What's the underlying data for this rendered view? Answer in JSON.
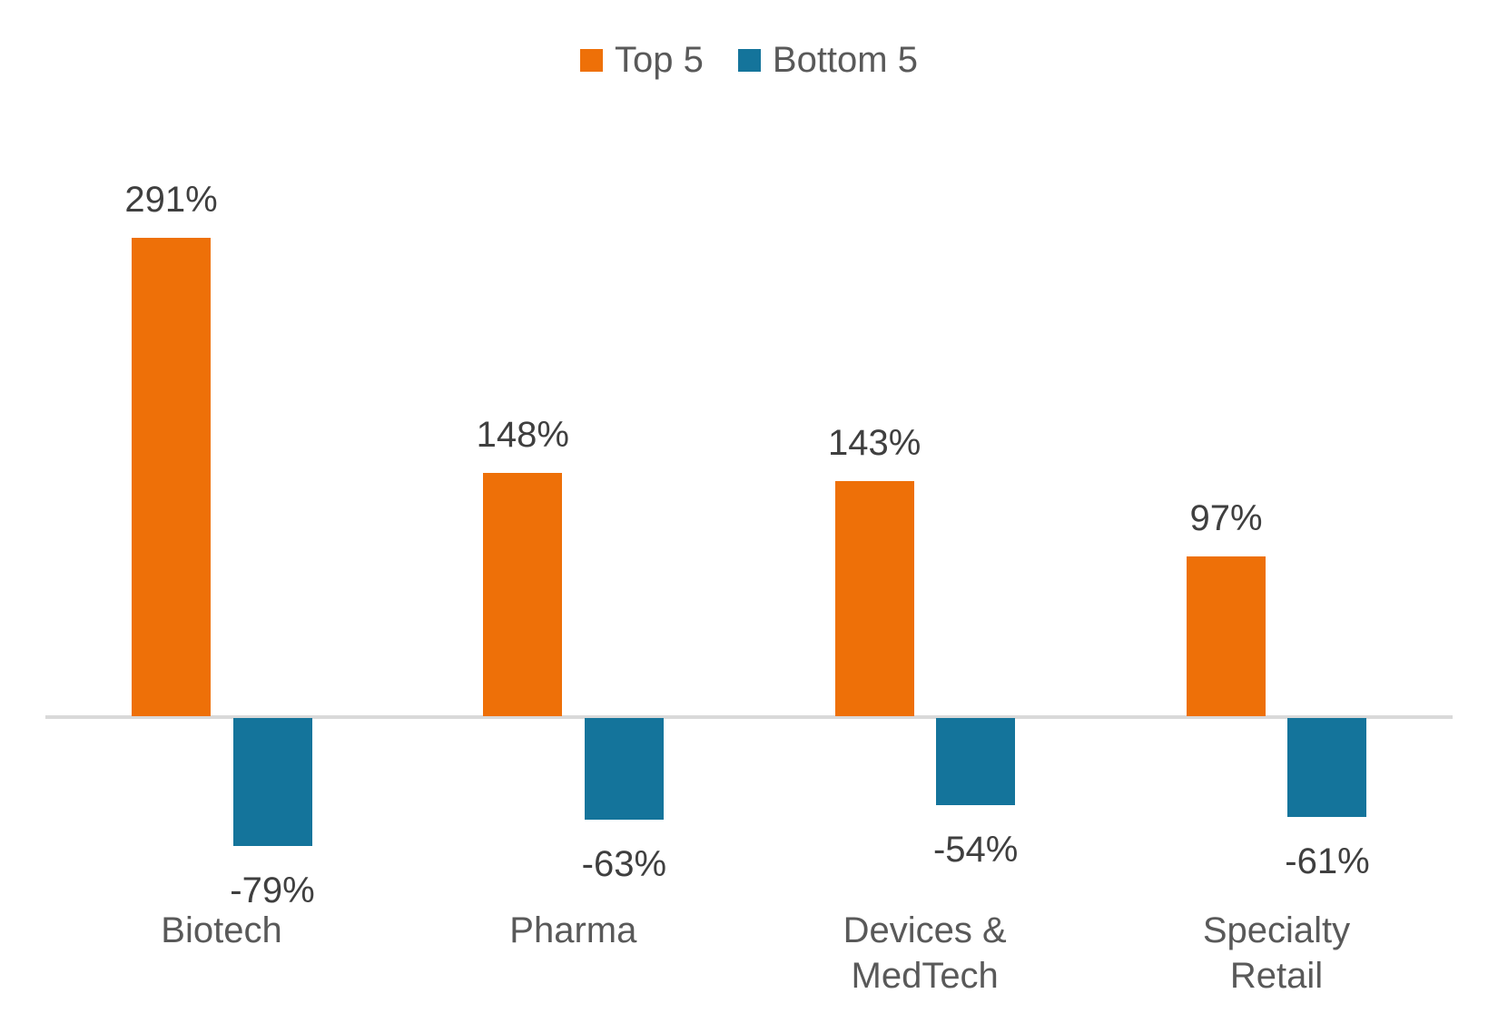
{
  "chart_data": {
    "type": "bar",
    "title": "",
    "categories": [
      "Biotech",
      "Pharma",
      "Devices & MedTech",
      "Specialty Retail"
    ],
    "series": [
      {
        "name": "Top 5",
        "color": "#EE7008",
        "values": [
          291,
          148,
          143,
          97
        ],
        "labels": [
          "291%",
          "148%",
          "143%",
          "97%"
        ]
      },
      {
        "name": "Bottom 5",
        "color": "#14749B",
        "values": [
          -79,
          -63,
          -54,
          -61
        ],
        "labels": [
          "-79%",
          "-63%",
          "-54%",
          "-61%"
        ]
      }
    ],
    "legend_position": "top-center",
    "grid": false,
    "value_axis_visible": false,
    "baseline_value": 0,
    "axis_line_color": "#D9D9D9",
    "value_label_color": "#3F3F3F",
    "category_label_color": "#595959",
    "legend_text_color": "#595959",
    "background_color": "#FFFFFF"
  }
}
